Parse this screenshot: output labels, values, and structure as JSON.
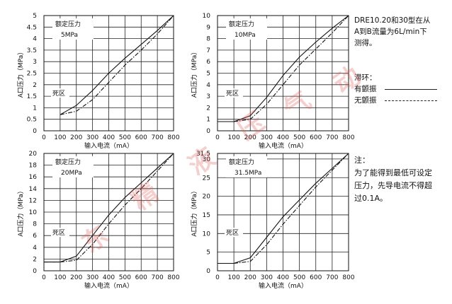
{
  "chart_data": [
    {
      "type": "line",
      "xlabel": "输入电流（mA）",
      "ylabel": "A口压力（MPa）",
      "xticks": [
        "0",
        "100",
        "200",
        "300",
        "400",
        "500",
        "600",
        "700",
        "800"
      ],
      "yticks": [
        "0.5",
        "1",
        "1.5",
        "2",
        "2.5",
        "3",
        "3.5",
        "4",
        "4.5",
        "5"
      ],
      "xlim": [
        0,
        800
      ],
      "ylim": [
        0,
        5
      ],
      "rated_label": "额定压力",
      "rated_value": "5MPa",
      "dead_zone": "死区",
      "grid": true,
      "series": [
        {
          "name": "有颤振",
          "style": "solid",
          "x": [
            100,
            200,
            300,
            400,
            500,
            600,
            700,
            800
          ],
          "y": [
            0.7,
            1.1,
            1.75,
            2.5,
            3.15,
            3.75,
            4.35,
            5.0
          ]
        },
        {
          "name": "无颤振",
          "style": "dashdot",
          "x": [
            100,
            200,
            300,
            400,
            500,
            600,
            700,
            800
          ],
          "y": [
            0.7,
            0.85,
            1.35,
            2.1,
            2.85,
            3.5,
            4.2,
            5.0
          ]
        }
      ]
    },
    {
      "type": "line",
      "xlabel": "输入电流（mA）",
      "ylabel": "A口压力（MPa）",
      "xticks": [
        "0",
        "100",
        "200",
        "300",
        "400",
        "500",
        "600",
        "700",
        "800"
      ],
      "yticks": [
        "1",
        "2",
        "3",
        "4",
        "5",
        "6",
        "7",
        "8",
        "9",
        "10"
      ],
      "xlim": [
        0,
        800
      ],
      "ylim": [
        0,
        10
      ],
      "rated_label": "额定压力",
      "rated_value": "10MPa",
      "dead_zone": "死区",
      "grid": true,
      "series": [
        {
          "name": "有颤振",
          "style": "solid",
          "x": [
            0,
            100,
            200,
            300,
            400,
            500,
            600,
            700,
            800
          ],
          "y": [
            0.8,
            0.8,
            1.3,
            2.9,
            4.8,
            6.4,
            7.7,
            8.9,
            10.0
          ]
        },
        {
          "name": "无颤振",
          "style": "dashdot",
          "x": [
            0,
            100,
            200,
            300,
            400,
            500,
            600,
            700,
            800
          ],
          "y": [
            0.8,
            0.8,
            1.0,
            2.3,
            4.0,
            5.7,
            7.1,
            8.5,
            10.0
          ]
        }
      ]
    },
    {
      "type": "line",
      "xlabel": "输入电流（mA）",
      "ylabel": "A口压力（MPa）",
      "xticks": [
        "0",
        "100",
        "200",
        "300",
        "400",
        "500",
        "600",
        "700",
        "800"
      ],
      "yticks": [
        "2",
        "4",
        "6",
        "8",
        "10",
        "12",
        "14",
        "16",
        "18",
        "20"
      ],
      "xlim": [
        0,
        800
      ],
      "ylim": [
        0,
        20
      ],
      "rated_label": "额定压力",
      "rated_value": "20MPa",
      "dead_zone": "死区",
      "grid": true,
      "series": [
        {
          "name": "有颤振",
          "style": "solid",
          "x": [
            0,
            100,
            200,
            300,
            400,
            500,
            600,
            700,
            800
          ],
          "y": [
            1.5,
            1.5,
            2.5,
            6.0,
            9.5,
            12.5,
            15.0,
            17.5,
            20.0
          ]
        },
        {
          "name": "无颤振",
          "style": "dashdot",
          "x": [
            0,
            100,
            200,
            300,
            400,
            500,
            600,
            700,
            800
          ],
          "y": [
            1.5,
            1.5,
            1.8,
            4.5,
            8.0,
            11.2,
            14.0,
            17.0,
            20.0
          ]
        }
      ]
    },
    {
      "type": "line",
      "xlabel": "输入电流（mA）",
      "ylabel": "A口压力（MPa）",
      "xticks": [
        "0",
        "100",
        "200",
        "300",
        "400",
        "500",
        "600",
        "700",
        "800"
      ],
      "yticks": [
        "5",
        "10",
        "15",
        "20",
        "25",
        "30",
        "31.5"
      ],
      "xlim": [
        0,
        800
      ],
      "ylim": [
        0,
        31.5
      ],
      "rated_label": "额定压力",
      "rated_value": "31.5MPa",
      "dead_zone": "死区",
      "grid": true,
      "series": [
        {
          "name": "有颤振",
          "style": "solid",
          "x": [
            0,
            100,
            200,
            300,
            400,
            500,
            600,
            700,
            800
          ],
          "y": [
            2.0,
            2.0,
            3.5,
            9.0,
            14.5,
            19.0,
            23.5,
            27.5,
            31.5
          ]
        },
        {
          "name": "无颤振",
          "style": "dashdot",
          "x": [
            0,
            100,
            200,
            300,
            400,
            500,
            600,
            700,
            800
          ],
          "y": [
            2.0,
            2.0,
            2.5,
            7.0,
            12.5,
            17.5,
            22.5,
            27.0,
            31.5
          ]
        }
      ]
    }
  ],
  "notes": {
    "intro": [
      "DRE10.20和30型在从",
      "A到B流量为6L/min下",
      "测得。"
    ],
    "legend_title": "滞环：",
    "legend_items": [
      "有颤振",
      "无颤振"
    ],
    "note_title": "注：",
    "note_lines": [
      "为了能得到最低可设定",
      "压力，先导电流不得超",
      "过0.1A。"
    ]
  },
  "watermark": {
    "chars": [
      "东",
      "精",
      "液",
      "压",
      "气",
      "动"
    ],
    "color": "#dc5050"
  }
}
